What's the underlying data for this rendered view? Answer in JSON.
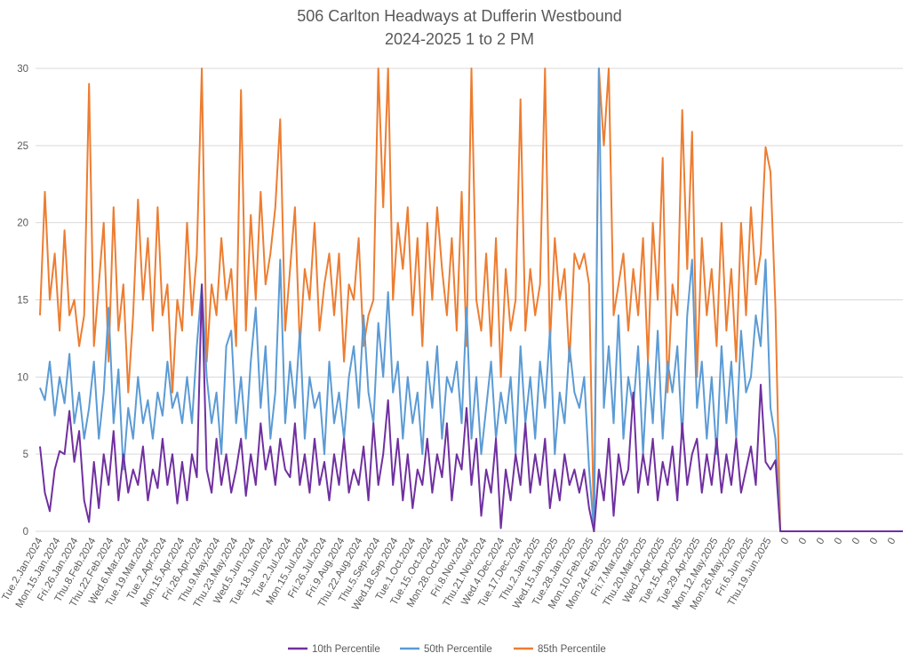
{
  "chart_data": {
    "type": "line",
    "title": "506 Carlton Headways at Dufferin Westbound",
    "subtitle": "2024-2025 1 to 2 PM",
    "xlabel": "",
    "ylabel": "",
    "ylim": [
      0,
      30
    ],
    "yticks": [
      0,
      5,
      10,
      15,
      20,
      25,
      30
    ],
    "grid": true,
    "legend_position": "bottom",
    "tick_labels": [
      "Tue.2.Jan.2024",
      "Mon.15.Jan.2024",
      "Fri.26.Jan.2024",
      "Thu.8.Feb.2024",
      "Thu.22.Feb.2024",
      "Wed.6.Mar.2024",
      "Tue.19.Mar.2024",
      "Tue.2.Apr.2024",
      "Mon.15.Apr.2024",
      "Fri.26.Apr.2024",
      "Thu.9.May.2024",
      "Thu.23.May.2024",
      "Wed.5.Jun.2024",
      "Tue.18.Jun.2024",
      "Tue.2.Jul.2024",
      "Mon.15.Jul.2024",
      "Fri.26.Jul.2024",
      "Fri.9.Aug.2024",
      "Thu.22.Aug.2024",
      "Thu.5.Sep.2024",
      "Wed.18.Sep.2024",
      "Tue.1.Oct.2024",
      "Tue.15.Oct.2024",
      "Mon.28.Oct.2024",
      "Fri.8.Nov.2024",
      "Thu.21.Nov.2024",
      "Wed.4.Dec.2024",
      "Tue.17.Dec.2024",
      "Thu.2.Jan.2025",
      "Wed.15.Jan.2025",
      "Tue.28.Jan.2025",
      "Mon.10.Feb.2025",
      "Mon.24.Feb.2025",
      "Fri.7.Mar.2025",
      "Thu.20.Mar.2025",
      "Wed.2.Apr.2025",
      "Tue.15.Apr.2025",
      "Tue.29.Apr.2025",
      "Mon.12.May.2025",
      "Mon.26.May.2025",
      "Fri.6.Jun.2025",
      "Thu.19.Jun.2025",
      "0",
      "0",
      "0",
      "0",
      "0",
      "0",
      "0"
    ],
    "series": [
      {
        "name": "10th Percentile",
        "color": "#7030A0",
        "values": [
          5.5,
          2.5,
          1.3,
          4,
          5.2,
          5,
          7.8,
          4.5,
          6.5,
          2,
          0.6,
          4.5,
          1.5,
          5,
          3,
          6.5,
          2,
          5,
          2.5,
          4,
          3,
          5.5,
          2,
          4,
          2.8,
          6,
          3,
          5,
          1.8,
          4.5,
          2,
          5,
          3.5,
          16,
          4,
          2.5,
          6,
          3,
          5,
          2.5,
          4,
          6,
          2.3,
          5,
          3,
          7,
          4,
          5.5,
          3,
          6,
          4,
          3.5,
          7,
          3,
          5,
          2.5,
          6,
          3,
          4.5,
          2,
          5,
          3,
          6,
          2.5,
          4,
          3,
          5.5,
          2,
          7,
          3,
          5,
          8.5,
          3,
          6,
          2,
          5,
          1.5,
          4,
          3,
          6,
          2.5,
          5,
          3.5,
          7,
          2,
          5,
          4,
          8,
          3,
          6,
          1,
          4,
          2.5,
          6,
          0.2,
          4,
          2,
          5,
          3,
          7,
          2.5,
          5,
          3,
          6,
          1.5,
          4,
          2,
          5,
          3,
          4,
          2.5,
          4,
          1.5,
          0,
          4,
          2,
          6,
          1,
          5,
          3,
          4,
          9,
          2.5,
          5,
          3,
          6,
          2,
          4.5,
          3,
          5.5,
          2,
          7,
          3,
          5,
          6,
          2.5,
          5,
          3,
          6,
          2.5,
          5,
          3,
          6,
          2.5,
          4,
          5.5,
          3,
          9.5,
          4.5,
          4,
          4.6,
          0,
          0,
          0,
          0,
          0,
          0,
          0,
          0,
          0,
          0,
          0,
          0,
          0,
          0,
          0,
          0,
          0,
          0,
          0,
          0,
          0,
          0,
          0,
          0,
          0,
          0
        ]
      },
      {
        "name": "50th Percentile",
        "color": "#5B9BD5",
        "values": [
          9.3,
          8.5,
          11,
          7.5,
          10,
          8.3,
          11.5,
          7,
          9,
          6,
          8,
          11,
          6,
          9,
          14.5,
          7,
          10.5,
          4,
          8,
          6,
          10,
          7,
          8.5,
          6,
          9,
          7.5,
          11,
          8,
          9,
          7,
          10,
          7,
          12,
          16,
          10,
          7,
          9,
          5,
          12,
          13,
          7,
          10,
          6,
          11,
          14.5,
          8,
          12,
          6,
          9,
          17.6,
          7,
          11,
          8,
          13,
          6,
          10,
          8,
          9,
          5,
          11,
          7,
          9,
          6,
          10,
          12,
          8,
          14,
          9,
          7,
          13.5,
          10,
          15.5,
          9,
          11,
          6,
          10,
          7,
          9,
          5,
          11,
          8,
          12,
          6,
          10,
          9,
          11,
          7,
          14.5,
          6,
          10,
          5,
          8,
          11,
          6,
          9,
          7,
          10,
          5,
          12,
          7,
          10,
          6,
          11,
          8,
          13,
          5,
          9,
          7,
          12,
          9,
          8,
          10,
          4,
          0,
          30,
          8,
          12,
          7,
          14,
          6,
          10,
          8,
          12,
          5,
          11,
          7,
          13,
          6,
          11,
          9,
          12,
          6,
          14,
          17.6,
          8,
          11,
          6,
          10,
          5,
          12,
          7,
          11,
          6,
          13,
          9,
          10,
          14,
          12,
          17.6,
          8,
          6,
          0,
          0,
          0,
          0,
          0,
          0,
          0,
          0,
          0,
          0,
          0,
          0,
          0,
          0,
          0,
          0,
          0,
          0,
          0,
          0,
          0,
          0,
          0,
          0,
          0,
          0
        ]
      },
      {
        "name": "85th Percentile",
        "color": "#ED7D31",
        "values": [
          14,
          22,
          15,
          18,
          13,
          19.5,
          14,
          15,
          12,
          14,
          29,
          12,
          16,
          20,
          11,
          21,
          13,
          16,
          9,
          14,
          21.5,
          15,
          19,
          13,
          21,
          14,
          16,
          9,
          15,
          13,
          20,
          14,
          18,
          30,
          11,
          16,
          14,
          19,
          15,
          17,
          12,
          28.6,
          13,
          20.5,
          15,
          22,
          16,
          18,
          21,
          26.7,
          13,
          17,
          21,
          12,
          17,
          15,
          20,
          13,
          16,
          18,
          14,
          18,
          11,
          16,
          15,
          19,
          12,
          14,
          15,
          30,
          21,
          30,
          15,
          20,
          17,
          21,
          14,
          19,
          12,
          20,
          15,
          21,
          17,
          14,
          19,
          13,
          22,
          12,
          30,
          15,
          13,
          18,
          12,
          19,
          10,
          17,
          13,
          15,
          28,
          13,
          17,
          14,
          16,
          30,
          12,
          19,
          15,
          17,
          11,
          18,
          17,
          18,
          16,
          0,
          30,
          25,
          30,
          14,
          16,
          18,
          13,
          17,
          14,
          19,
          11,
          20,
          15,
          24.2,
          9,
          16,
          14,
          27.3,
          17,
          25.9,
          10,
          19,
          14,
          17,
          12,
          20,
          13,
          17,
          11,
          20,
          14,
          21,
          16,
          18,
          24.9,
          23.3,
          14.5,
          0,
          0,
          0,
          0,
          0,
          0,
          0,
          0,
          0,
          0,
          0,
          0,
          0,
          0,
          0,
          0,
          0,
          0,
          0,
          0,
          0,
          0,
          0,
          0,
          0,
          0
        ]
      }
    ]
  }
}
